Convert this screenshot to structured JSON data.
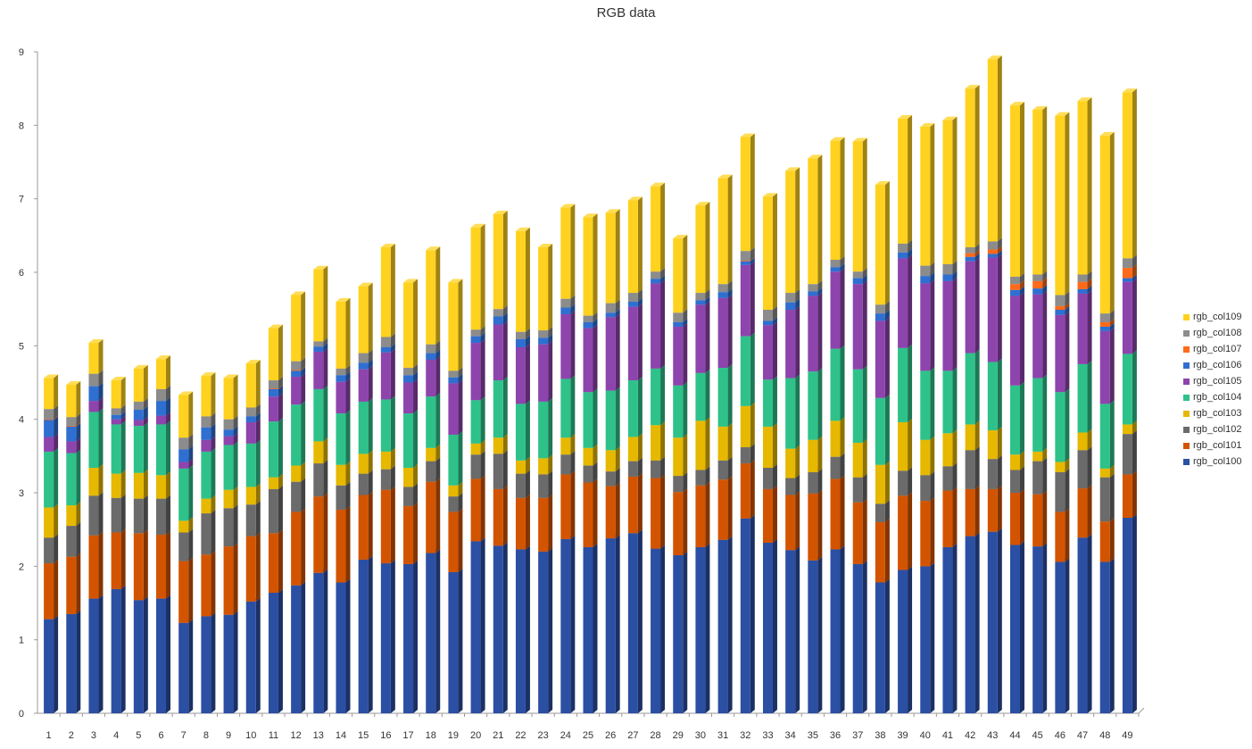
{
  "chart_data": {
    "type": "bar",
    "stacked": true,
    "three_d": true,
    "title": "RGB data",
    "xlabel": "",
    "ylabel": "",
    "ylim": [
      0,
      9
    ],
    "yticks": [
      0,
      1,
      2,
      3,
      4,
      5,
      6,
      7,
      8,
      9
    ],
    "grid": false,
    "legend_position": "right",
    "categories": [
      "1",
      "2",
      "3",
      "4",
      "5",
      "6",
      "7",
      "8",
      "9",
      "10",
      "11",
      "12",
      "13",
      "14",
      "15",
      "16",
      "17",
      "18",
      "19",
      "20",
      "21",
      "22",
      "23",
      "24",
      "25",
      "26",
      "27",
      "28",
      "29",
      "30",
      "31",
      "32",
      "33",
      "34",
      "35",
      "36",
      "37",
      "38",
      "39",
      "40",
      "41",
      "42",
      "43",
      "44",
      "45",
      "46",
      "47",
      "48",
      "49"
    ],
    "series": [
      {
        "name": "rgb_col100",
        "color": "#2b4fa3",
        "values": [
          1.28,
          1.35,
          1.56,
          1.69,
          1.54,
          1.56,
          1.23,
          1.32,
          1.34,
          1.52,
          1.64,
          1.74,
          1.91,
          1.78,
          2.09,
          2.04,
          2.03,
          2.18,
          1.92,
          2.34,
          2.28,
          2.23,
          2.2,
          2.37,
          2.26,
          2.38,
          2.45,
          2.24,
          2.15,
          2.26,
          2.36,
          2.65,
          2.32,
          2.22,
          2.08,
          2.23,
          2.03,
          1.78,
          1.95,
          2.0,
          2.26,
          2.41,
          2.47,
          2.29,
          2.27,
          2.06,
          2.39,
          2.06,
          2.66
        ]
      },
      {
        "name": "rgb_col101",
        "color": "#d35400",
        "values": [
          0.76,
          0.78,
          0.86,
          0.77,
          0.91,
          0.87,
          0.84,
          0.84,
          0.93,
          0.89,
          0.81,
          1.0,
          1.04,
          0.99,
          0.88,
          1.0,
          0.79,
          0.97,
          0.82,
          0.85,
          0.77,
          0.7,
          0.73,
          0.88,
          0.88,
          0.71,
          0.77,
          0.96,
          0.86,
          0.84,
          0.82,
          0.75,
          0.73,
          0.75,
          0.91,
          0.96,
          0.84,
          0.82,
          1.01,
          0.89,
          0.77,
          0.64,
          0.58,
          0.71,
          0.71,
          0.68,
          0.67,
          0.55,
          0.59
        ]
      },
      {
        "name": "rgb_col102",
        "color": "#6b6b6b",
        "values": [
          0.35,
          0.42,
          0.54,
          0.47,
          0.47,
          0.49,
          0.39,
          0.56,
          0.52,
          0.43,
          0.6,
          0.41,
          0.45,
          0.33,
          0.29,
          0.28,
          0.26,
          0.28,
          0.21,
          0.33,
          0.48,
          0.33,
          0.32,
          0.27,
          0.23,
          0.2,
          0.21,
          0.24,
          0.22,
          0.21,
          0.26,
          0.22,
          0.29,
          0.23,
          0.29,
          0.3,
          0.34,
          0.25,
          0.34,
          0.35,
          0.33,
          0.53,
          0.41,
          0.31,
          0.45,
          0.54,
          0.52,
          0.6,
          0.55
        ]
      },
      {
        "name": "rgb_col103",
        "color": "#e6b800",
        "values": [
          0.41,
          0.28,
          0.38,
          0.33,
          0.35,
          0.32,
          0.16,
          0.2,
          0.25,
          0.24,
          0.16,
          0.22,
          0.3,
          0.28,
          0.27,
          0.24,
          0.26,
          0.18,
          0.15,
          0.15,
          0.22,
          0.18,
          0.22,
          0.23,
          0.24,
          0.29,
          0.33,
          0.48,
          0.52,
          0.67,
          0.46,
          0.56,
          0.56,
          0.4,
          0.44,
          0.49,
          0.47,
          0.53,
          0.66,
          0.48,
          0.45,
          0.35,
          0.39,
          0.21,
          0.13,
          0.14,
          0.24,
          0.12,
          0.13
        ]
      },
      {
        "name": "rgb_col104",
        "color": "#2ec28a",
        "values": [
          0.76,
          0.71,
          0.76,
          0.67,
          0.64,
          0.69,
          0.71,
          0.64,
          0.61,
          0.59,
          0.76,
          0.83,
          0.71,
          0.7,
          0.71,
          0.71,
          0.74,
          0.7,
          0.69,
          0.59,
          0.78,
          0.77,
          0.77,
          0.8,
          0.76,
          0.81,
          0.77,
          0.77,
          0.71,
          0.65,
          0.8,
          0.95,
          0.64,
          0.96,
          0.93,
          0.98,
          1.0,
          0.91,
          1.01,
          0.94,
          0.85,
          0.97,
          0.93,
          0.94,
          1.0,
          0.95,
          0.93,
          0.88,
          0.96
        ]
      },
      {
        "name": "rgb_col105",
        "color": "#8e44ad",
        "values": [
          0.2,
          0.16,
          0.15,
          0.07,
          0.08,
          0.12,
          0.09,
          0.16,
          0.12,
          0.29,
          0.34,
          0.38,
          0.51,
          0.43,
          0.44,
          0.64,
          0.42,
          0.5,
          0.7,
          0.78,
          0.76,
          0.77,
          0.78,
          0.88,
          0.87,
          1.0,
          1.0,
          1.16,
          0.8,
          0.93,
          0.95,
          0.97,
          0.74,
          0.93,
          1.03,
          1.05,
          1.16,
          1.05,
          1.22,
          1.19,
          1.22,
          1.25,
          1.42,
          1.22,
          1.14,
          1.05,
          0.96,
          0.99,
          0.98
        ]
      },
      {
        "name": "rgb_col106",
        "color": "#2f6fd1",
        "values": [
          0.23,
          0.2,
          0.2,
          0.06,
          0.14,
          0.2,
          0.17,
          0.17,
          0.09,
          0.08,
          0.1,
          0.08,
          0.07,
          0.09,
          0.09,
          0.07,
          0.1,
          0.09,
          0.08,
          0.09,
          0.11,
          0.11,
          0.09,
          0.09,
          0.08,
          0.06,
          0.07,
          0.06,
          0.06,
          0.06,
          0.08,
          0.05,
          0.06,
          0.1,
          0.06,
          0.06,
          0.08,
          0.1,
          0.08,
          0.1,
          0.09,
          0.06,
          0.05,
          0.08,
          0.08,
          0.07,
          0.06,
          0.06,
          0.05
        ]
      },
      {
        "name": "rgb_col107",
        "color": "#ff6a1a",
        "values": [
          0.01,
          0.01,
          0.0,
          0.0,
          0.0,
          0.0,
          0.0,
          0.0,
          0.0,
          0.0,
          0.01,
          0.01,
          0.0,
          0.0,
          0.0,
          0.0,
          0.0,
          0.0,
          0.0,
          0.0,
          0.0,
          0.0,
          0.0,
          0.0,
          0.0,
          0.0,
          0.0,
          0.0,
          0.0,
          0.0,
          0.0,
          0.01,
          0.0,
          0.0,
          0.0,
          0.0,
          0.0,
          0.0,
          0.0,
          0.0,
          0.0,
          0.05,
          0.06,
          0.08,
          0.1,
          0.05,
          0.1,
          0.06,
          0.14
        ]
      },
      {
        "name": "rgb_col108",
        "color": "#8c8c8c",
        "values": [
          0.14,
          0.12,
          0.17,
          0.09,
          0.11,
          0.16,
          0.16,
          0.15,
          0.14,
          0.12,
          0.11,
          0.12,
          0.07,
          0.09,
          0.13,
          0.14,
          0.1,
          0.12,
          0.09,
          0.09,
          0.1,
          0.1,
          0.1,
          0.12,
          0.09,
          0.13,
          0.12,
          0.1,
          0.13,
          0.1,
          0.11,
          0.13,
          0.15,
          0.13,
          0.1,
          0.1,
          0.09,
          0.12,
          0.12,
          0.14,
          0.14,
          0.08,
          0.11,
          0.1,
          0.09,
          0.15,
          0.1,
          0.12,
          0.13
        ]
      },
      {
        "name": "rgb_col109",
        "color": "#ffd21f",
        "values": [
          0.42,
          0.44,
          0.42,
          0.38,
          0.45,
          0.41,
          0.58,
          0.55,
          0.56,
          0.6,
          0.71,
          0.9,
          0.98,
          0.91,
          0.91,
          1.22,
          1.16,
          1.28,
          1.2,
          1.39,
          1.29,
          1.37,
          1.13,
          1.24,
          1.34,
          1.23,
          1.26,
          1.16,
          1.01,
          1.19,
          1.44,
          1.55,
          1.54,
          1.66,
          1.71,
          1.62,
          1.77,
          1.63,
          1.7,
          1.89,
          1.96,
          2.16,
          2.48,
          2.33,
          2.24,
          2.44,
          2.36,
          2.42,
          2.26
        ]
      }
    ]
  }
}
